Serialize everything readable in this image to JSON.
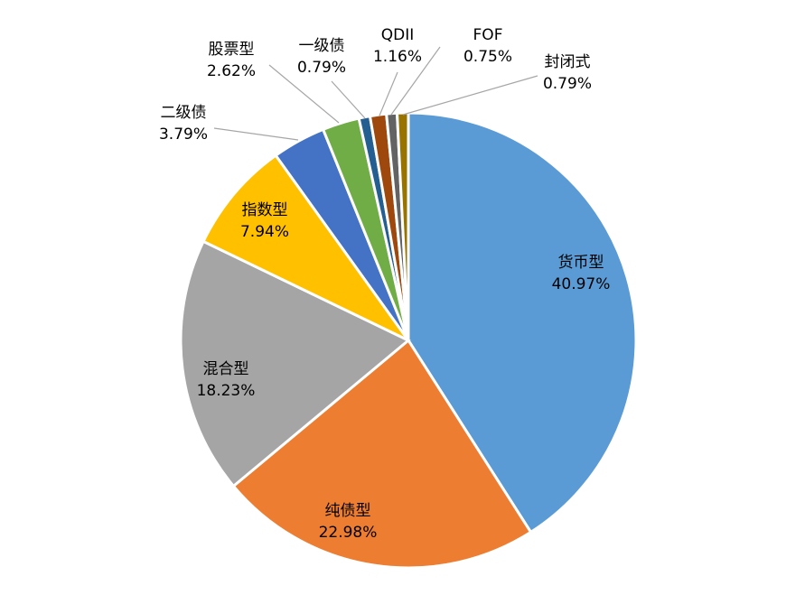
{
  "chart_data": {
    "type": "pie",
    "start_angle_deg": 0,
    "direction": "clockwise",
    "slices": [
      {
        "name": "货币型",
        "value": 40.97,
        "label": "40.97%",
        "color": "#5B9BD5"
      },
      {
        "name": "纯债型",
        "value": 22.98,
        "label": "22.98%",
        "color": "#ED7D31"
      },
      {
        "name": "混合型",
        "value": 18.23,
        "label": "18.23%",
        "color": "#A5A5A5"
      },
      {
        "name": "指数型",
        "value": 7.94,
        "label": "7.94%",
        "color": "#FFC000"
      },
      {
        "name": "二级债",
        "value": 3.79,
        "label": "3.79%",
        "color": "#4472C4"
      },
      {
        "name": "股票型",
        "value": 2.62,
        "label": "2.62%",
        "color": "#70AD47"
      },
      {
        "name": "一级债",
        "value": 0.79,
        "label": "0.79%",
        "color": "#255E91"
      },
      {
        "name": "QDII",
        "value": 1.16,
        "label": "1.16%",
        "color": "#9E480E"
      },
      {
        "name": "FOF",
        "value": 0.75,
        "label": "0.75%",
        "color": "#636363"
      },
      {
        "name": "封闭式",
        "value": 0.79,
        "label": "0.79%",
        "color": "#997300"
      }
    ]
  }
}
